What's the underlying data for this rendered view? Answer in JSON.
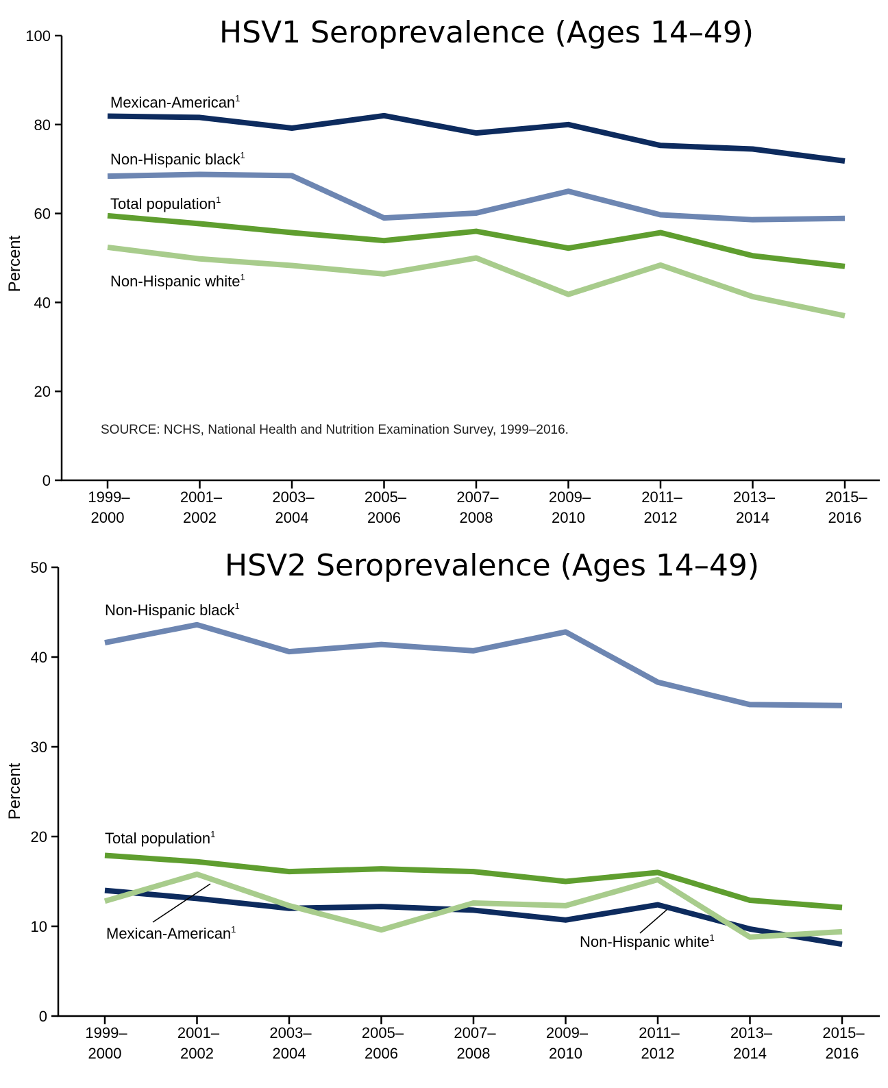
{
  "chart_data": [
    {
      "type": "line",
      "title": "HSV1 Seroprevalence (Ages 14–49)",
      "ylabel": "Percent",
      "xlabel": "",
      "ylim": [
        0,
        100
      ],
      "yticks": [
        "0",
        "20",
        "40",
        "60",
        "80",
        "100"
      ],
      "categories": [
        [
          "1999–",
          "2000"
        ],
        [
          "2001–",
          "2002"
        ],
        [
          "2003–",
          "2004"
        ],
        [
          "2005–",
          "2006"
        ],
        [
          "2007–",
          "2008"
        ],
        [
          "2009–",
          "2010"
        ],
        [
          "2011–",
          "2012"
        ],
        [
          "2013–",
          "2014"
        ],
        [
          "2015–",
          "2016"
        ]
      ],
      "grid": false,
      "series": [
        {
          "name": "Mexican-American",
          "sup": "1",
          "color": "#0d2b5e",
          "values": [
            81.9,
            81.6,
            79.2,
            82.0,
            78.1,
            80.0,
            75.3,
            74.5,
            71.8
          ]
        },
        {
          "name": "Non-Hispanic black",
          "sup": "1",
          "color": "#6d86b2",
          "values": [
            68.4,
            68.8,
            68.5,
            59.0,
            60.1,
            65.0,
            59.7,
            58.6,
            58.9
          ]
        },
        {
          "name": "Total population",
          "sup": "1",
          "color": "#5f9e2f",
          "values": [
            59.5,
            57.7,
            55.7,
            53.9,
            56.0,
            52.2,
            55.7,
            50.5,
            48.1
          ]
        },
        {
          "name": "Non-Hispanic white",
          "sup": "1",
          "color": "#a8cc8c",
          "values": [
            52.4,
            49.8,
            48.3,
            46.4,
            50.0,
            41.8,
            48.4,
            41.3,
            37.0
          ]
        }
      ],
      "note": "SOURCE: NCHS, National Health and Nutrition Examination Survey, 1999–2016."
    },
    {
      "type": "line",
      "title": "HSV2 Seroprevalence (Ages 14–49)",
      "ylabel": "Percent",
      "xlabel": "",
      "ylim": [
        0,
        50
      ],
      "yticks": [
        "0",
        "10",
        "20",
        "30",
        "40",
        "50"
      ],
      "categories": [
        [
          "1999–",
          "2000"
        ],
        [
          "2001–",
          "2002"
        ],
        [
          "2003–",
          "2004"
        ],
        [
          "2005–",
          "2006"
        ],
        [
          "2007–",
          "2008"
        ],
        [
          "2009–",
          "2010"
        ],
        [
          "2011–",
          "2012"
        ],
        [
          "2013–",
          "2014"
        ],
        [
          "2015–",
          "2016"
        ]
      ],
      "grid": false,
      "series": [
        {
          "name": "Non-Hispanic black",
          "sup": "1",
          "color": "#6d86b2",
          "values": [
            41.6,
            43.6,
            40.6,
            41.4,
            40.7,
            42.8,
            37.2,
            34.7,
            34.6
          ]
        },
        {
          "name": "Total population",
          "sup": "1",
          "color": "#5f9e2f",
          "values": [
            17.9,
            17.2,
            16.1,
            16.4,
            16.1,
            15.0,
            16.0,
            12.9,
            12.1
          ]
        },
        {
          "name": "Mexican-American",
          "sup": "1",
          "color": "#0d2b5e",
          "values": [
            14.0,
            13.1,
            12.0,
            12.2,
            11.8,
            10.7,
            12.4,
            9.7,
            8.0
          ]
        },
        {
          "name": "Non-Hispanic white",
          "sup": "1",
          "color": "#a8cc8c",
          "values": [
            12.8,
            15.8,
            12.3,
            9.6,
            12.6,
            12.3,
            15.2,
            8.8,
            9.4
          ]
        }
      ]
    }
  ]
}
